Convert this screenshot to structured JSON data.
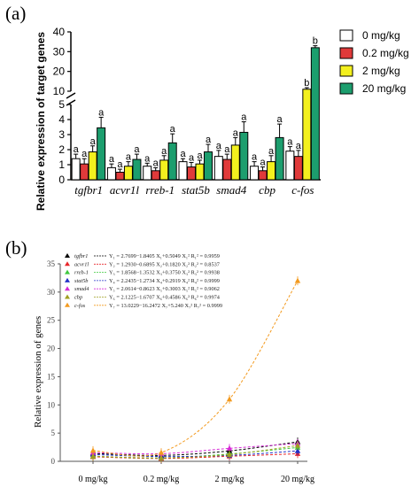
{
  "chart_data": [
    {
      "type": "bar",
      "panel": "(a)",
      "title": "",
      "ylabel": "Relative expression of target genes",
      "xlabel": "",
      "categories": [
        "tgfbr1",
        "acvr1l",
        "rreb-1",
        "stat5b",
        "smad4",
        "cbp",
        "c-fos"
      ],
      "axis_break": true,
      "ylim_lower": [
        0,
        5
      ],
      "ylim_upper": [
        10,
        40
      ],
      "yticks_lower": [
        "0",
        "1",
        "2",
        "3",
        "4",
        "5"
      ],
      "yticks_upper": [
        "10",
        "20",
        "30",
        "40"
      ],
      "series": [
        {
          "name": "0 mg/kg",
          "color": "#ffffff",
          "values": [
            1.4,
            0.8,
            0.9,
            1.2,
            1.55,
            0.9,
            1.9
          ],
          "errors": [
            0.3,
            0.25,
            0.2,
            0.2,
            0.4,
            0.3,
            0.3
          ],
          "labels": [
            "a",
            "a",
            "a",
            "a",
            "a",
            "a",
            "a"
          ]
        },
        {
          "name": "0.2 mg/kg",
          "color": "#e03a3a",
          "values": [
            1.05,
            0.5,
            0.6,
            0.85,
            1.35,
            0.6,
            1.55
          ],
          "errors": [
            0.35,
            0.2,
            0.2,
            0.3,
            0.35,
            0.25,
            0.4
          ],
          "labels": [
            "a",
            "a",
            "a",
            "a",
            "a",
            "a",
            "a"
          ]
        },
        {
          "name": "2 mg/kg",
          "color": "#f3f01e",
          "values": [
            1.85,
            0.9,
            1.3,
            1.05,
            2.3,
            1.2,
            11.0
          ],
          "errors": [
            0.4,
            0.3,
            0.3,
            0.25,
            0.5,
            0.4,
            0.8
          ],
          "labels": [
            "a",
            "a",
            "a",
            "a",
            "a",
            "a",
            "b"
          ]
        },
        {
          "name": "20 mg/kg",
          "color": "#1c9e6e",
          "values": [
            3.45,
            1.35,
            2.45,
            1.85,
            3.15,
            2.8,
            32.0
          ],
          "errors": [
            0.7,
            0.35,
            0.6,
            0.5,
            0.7,
            0.9,
            1.0
          ],
          "labels": [
            "a",
            "a",
            "a",
            "a",
            "a",
            "a",
            "b"
          ]
        }
      ]
    },
    {
      "type": "line",
      "panel": "(b)",
      "title": "",
      "ylabel": "Relative expression of genes",
      "xlabel": "",
      "categories": [
        "0 mg/kg",
        "0.2 mg/kg",
        "2 mg/kg",
        "20 mg/kg"
      ],
      "ylim": [
        0,
        35
      ],
      "yticks": [
        "0",
        "5",
        "10",
        "15",
        "20",
        "25",
        "30",
        "35"
      ],
      "series": [
        {
          "name": "tgfbr1",
          "color": "#000000",
          "marker": "triangle",
          "values": [
            1.4,
            1.05,
            1.85,
            3.45
          ],
          "equation": "Y₁ = 2.7699−1.8405 X₁+0.5049 X₁²  R₁² = 0.9959"
        },
        {
          "name": "acvr1l",
          "color": "#e8262a",
          "marker": "triangle",
          "values": [
            0.8,
            0.5,
            0.9,
            1.35
          ],
          "equation": "Y₂ = 1.2930−0.6895 X₂+0.1820 X₂²  R₂² = 0.8537"
        },
        {
          "name": "rreb-1",
          "color": "#3cc83c",
          "marker": "triangle",
          "values": [
            0.9,
            0.6,
            1.3,
            2.45
          ],
          "equation": "Y₃ = 1.8568−1.3532 X₃+0.3750 X₃²  R₃² = 0.9938"
        },
        {
          "name": "stat5b",
          "color": "#2231c8",
          "marker": "triangle",
          "values": [
            1.2,
            0.85,
            1.05,
            1.85
          ],
          "equation": "Y₄ = 2.2435−1.2734 X₄+0.2919 X₄²  R₄² = 0.9999"
        },
        {
          "name": "smad4",
          "color": "#d62ad6",
          "marker": "triangle",
          "values": [
            1.55,
            1.35,
            2.3,
            3.15
          ],
          "equation": "Y₅ = 2.0614−0.8623 X₅+0.3003 X₅²  R₅² = 0.9062"
        },
        {
          "name": "cbp",
          "color": "#a0a020",
          "marker": "triangle",
          "values": [
            0.9,
            0.6,
            1.2,
            2.8
          ],
          "equation": "Y₆ = 2.1225−1.6707 X₆+0.4586 X₆²  R₆² = 0.9974"
        },
        {
          "name": "c-fos",
          "color": "#f39a1e",
          "marker": "triangle",
          "values": [
            1.9,
            1.55,
            11.0,
            32.0
          ],
          "equation": "Y₇ = 13.0229−16.2472 X₇+5.240 X₇²  R₇² = 0.9999"
        }
      ]
    }
  ]
}
